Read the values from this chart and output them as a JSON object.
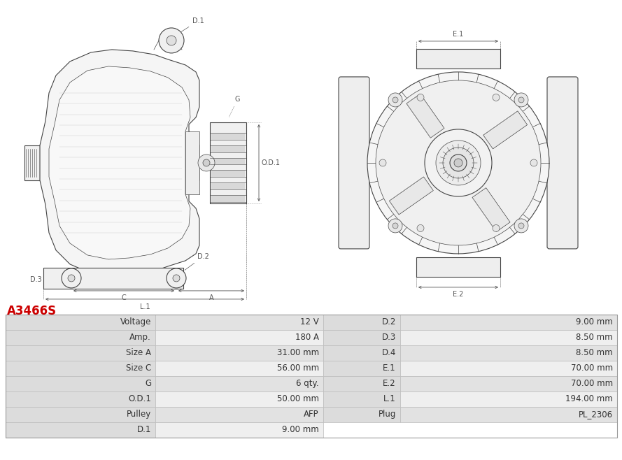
{
  "title": "A3466S",
  "title_color": "#cc0000",
  "bg_color": "#ffffff",
  "table_rows": [
    [
      "Voltage",
      "12 V",
      "D.2",
      "9.00 mm"
    ],
    [
      "Amp.",
      "180 A",
      "D.3",
      "8.50 mm"
    ],
    [
      "Size A",
      "31.00 mm",
      "D.4",
      "8.50 mm"
    ],
    [
      "Size C",
      "56.00 mm",
      "E.1",
      "70.00 mm"
    ],
    [
      "G",
      "6 qty.",
      "E.2",
      "70.00 mm"
    ],
    [
      "O.D.1",
      "50.00 mm",
      "L.1",
      "194.00 mm"
    ],
    [
      "Pulley",
      "AFP",
      "Plug",
      "PL_2306"
    ],
    [
      "D.1",
      "9.00 mm",
      "",
      ""
    ]
  ],
  "row_colors": [
    "#e2e2e2",
    "#efefef"
  ],
  "line_color": "#bbbbbb",
  "text_color": "#333333",
  "dim_color": "#555555",
  "drawing_color": "#444444",
  "font_size_table": 8.5,
  "font_size_title": 12,
  "fig_width": 8.89,
  "fig_height": 6.58,
  "dpi": 100
}
